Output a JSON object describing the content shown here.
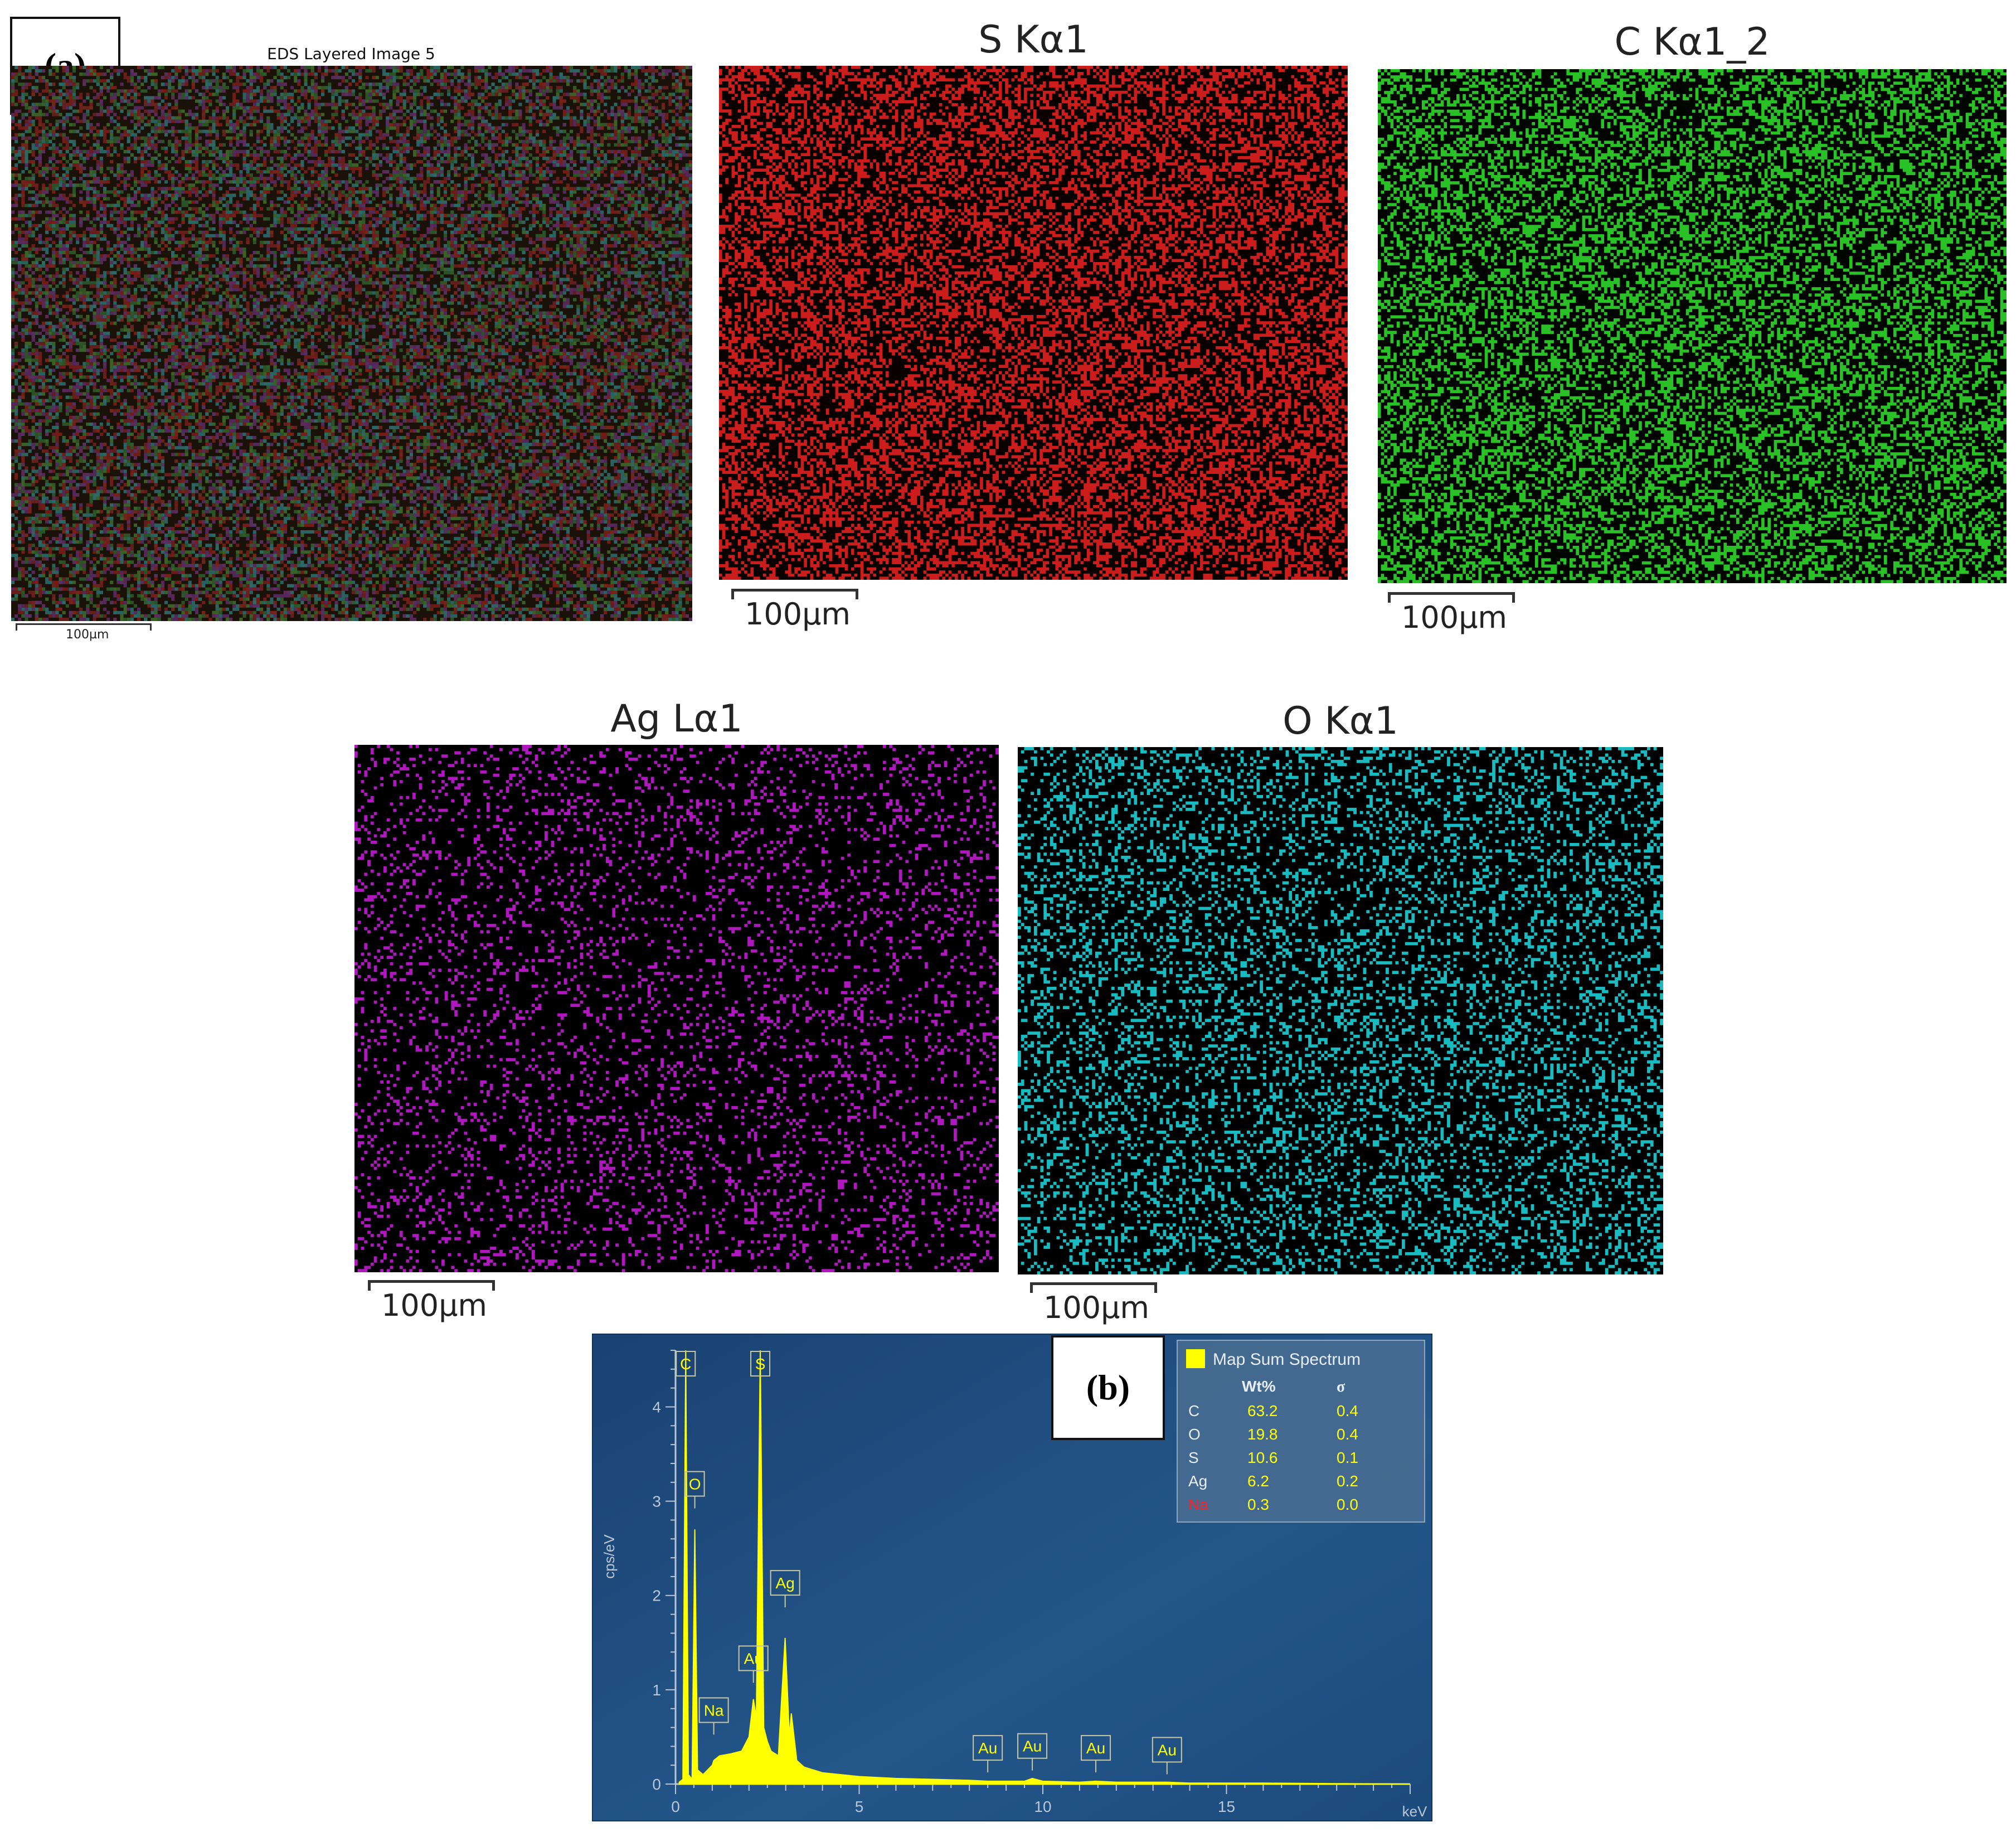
{
  "panel_a": {
    "label": "(a)",
    "layered": {
      "title": "EDS Layered Image 5",
      "scale": "100µm"
    },
    "maps": [
      {
        "id": "s",
        "title": "S Kα1",
        "scale": "100µm",
        "color": "#e0201e"
      },
      {
        "id": "c",
        "title": "C Kα1_2",
        "scale": "100µm",
        "color": "#2ed62a"
      },
      {
        "id": "ag",
        "title": "Ag Lα1",
        "scale": "100µm",
        "color": "#c21ad4"
      },
      {
        "id": "o",
        "title": "O Kα1",
        "scale": "100µm",
        "color": "#1ccfd6"
      }
    ]
  },
  "panel_b": {
    "label": "(b)",
    "legend": {
      "title": "Map Sum Spectrum",
      "col_wt": "Wt%",
      "col_sigma": "σ",
      "rows": [
        {
          "el": "C",
          "wt": "63.2",
          "sigma": "0.4"
        },
        {
          "el": "O",
          "wt": "19.8",
          "sigma": "0.4"
        },
        {
          "el": "S",
          "wt": "10.6",
          "sigma": "0.1"
        },
        {
          "el": "Ag",
          "wt": "6.2",
          "sigma": "0.2"
        },
        {
          "el": "Na",
          "wt": "0.3",
          "sigma": "0.0",
          "highlight": true
        }
      ]
    }
  },
  "colors": {
    "plot_bg": "#1d4a78",
    "spectrum": "#ffff00",
    "axis": "#b9c7d6",
    "highlight": "#ff2020"
  },
  "chart_data": {
    "type": "area",
    "title": "Map Sum Spectrum",
    "xlabel": "keV",
    "ylabel": "cps/eV",
    "xlim": [
      0,
      20
    ],
    "ylim": [
      0,
      4.6
    ],
    "xticks": [
      0,
      5,
      10,
      15
    ],
    "yticks": [
      0,
      1,
      2,
      3,
      4
    ],
    "series": [
      {
        "name": "Map Sum Spectrum",
        "x": [
          0.1,
          0.2,
          0.277,
          0.35,
          0.45,
          0.525,
          0.6,
          0.75,
          1.0,
          1.041,
          1.2,
          1.5,
          1.8,
          2.0,
          2.12,
          2.2,
          2.307,
          2.4,
          2.5,
          2.6,
          2.8,
          2.984,
          3.1,
          3.151,
          3.3,
          3.5,
          4.0,
          5.0,
          6.0,
          7.0,
          8.0,
          8.5,
          9.0,
          9.5,
          9.713,
          10.0,
          11.0,
          11.442,
          12.0,
          13.0,
          13.381,
          14.0,
          16.0,
          18.0,
          20.0
        ],
        "y": [
          0.02,
          0.05,
          4.6,
          0.1,
          0.05,
          2.7,
          0.15,
          0.1,
          0.2,
          0.25,
          0.3,
          0.32,
          0.35,
          0.5,
          0.9,
          0.7,
          4.6,
          0.6,
          0.45,
          0.35,
          0.3,
          1.55,
          0.5,
          0.75,
          0.25,
          0.18,
          0.12,
          0.08,
          0.06,
          0.05,
          0.04,
          0.03,
          0.03,
          0.03,
          0.06,
          0.03,
          0.02,
          0.03,
          0.02,
          0.02,
          0.02,
          0.01,
          0.01,
          0.005,
          0.0
        ]
      }
    ],
    "peak_labels": [
      {
        "label": "C",
        "x": 0.277,
        "y": 4.6
      },
      {
        "label": "O",
        "x": 0.525,
        "y": 2.9
      },
      {
        "label": "Na",
        "x": 1.041,
        "y": 0.5
      },
      {
        "label": "Au",
        "x": 2.12,
        "y": 1.05
      },
      {
        "label": "S",
        "x": 2.307,
        "y": 4.6
      },
      {
        "label": "Ag",
        "x": 2.984,
        "y": 1.85
      },
      {
        "label": "Au",
        "x": 8.5,
        "y": 0.1
      },
      {
        "label": "Au",
        "x": 9.713,
        "y": 0.12
      },
      {
        "label": "Au",
        "x": 11.442,
        "y": 0.1
      },
      {
        "label": "Au",
        "x": 13.381,
        "y": 0.08
      }
    ]
  }
}
